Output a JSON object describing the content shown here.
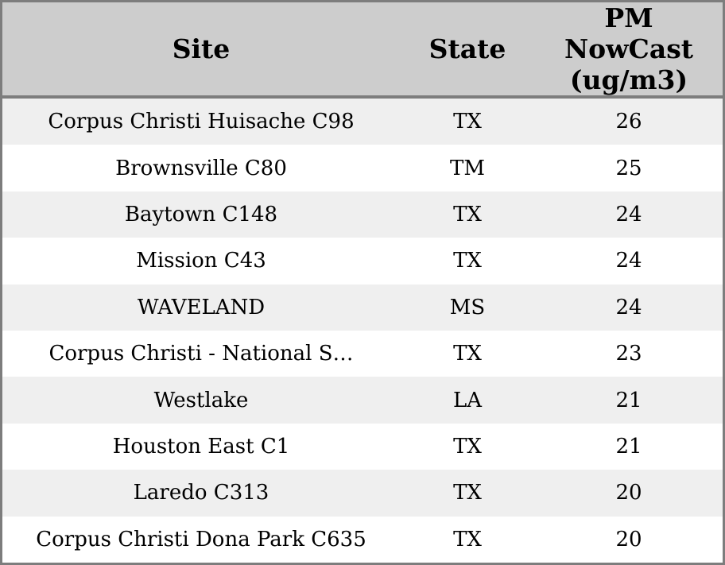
{
  "table": {
    "columns": [
      {
        "id": "site",
        "label": "Site"
      },
      {
        "id": "state",
        "label": "State"
      },
      {
        "id": "pm",
        "label": "PM\nNowCast\n(ug/m3)"
      }
    ],
    "rows": [
      {
        "site": "Corpus Christi Huisache C98",
        "state": "TX",
        "pm": "26"
      },
      {
        "site": "Brownsville C80",
        "state": "TM",
        "pm": "25"
      },
      {
        "site": "Baytown C148",
        "state": "TX",
        "pm": "24"
      },
      {
        "site": "Mission C43",
        "state": "TX",
        "pm": "24"
      },
      {
        "site": "WAVELAND",
        "state": "MS",
        "pm": "24"
      },
      {
        "site": "Corpus Christi - National S…",
        "state": "TX",
        "pm": "23"
      },
      {
        "site": "Westlake",
        "state": "LA",
        "pm": "21"
      },
      {
        "site": "Houston East C1",
        "state": "TX",
        "pm": "21"
      },
      {
        "site": "Laredo C313",
        "state": "TX",
        "pm": "20"
      },
      {
        "site": "Corpus Christi Dona Park C635",
        "state": "TX",
        "pm": "20"
      }
    ]
  },
  "colors": {
    "header_bg": "#cdcdcd",
    "row_alt_bg": "#efefef",
    "row_bg": "#ffffff",
    "border": "#7d7d7d",
    "text": "#000000"
  }
}
